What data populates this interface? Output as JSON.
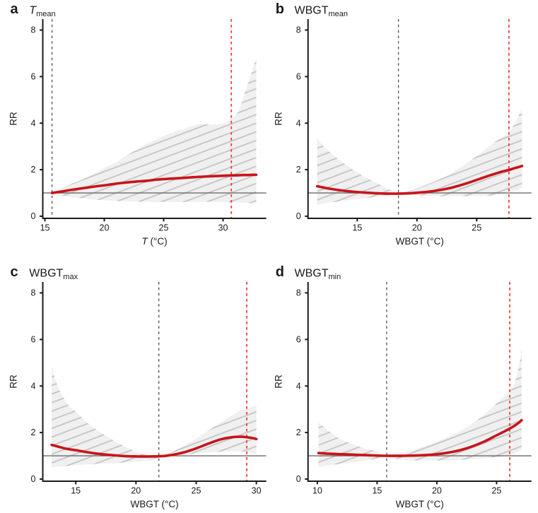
{
  "page": {
    "background": "#ffffff"
  },
  "style": {
    "curve_color": "#c8141a",
    "extreme_dashed_color": "#f23d33",
    "mmt_dashed_color": "#4d4d4d",
    "axis_color": "#1a1a1a",
    "reference_line_color": "#6b6b6b",
    "band_fill": "#f0f0f0",
    "band_hatch_color": "#c3c3c3",
    "text_color": "#1a1a1a"
  },
  "chart_data": [
    {
      "type": "line",
      "panel_label": "a",
      "title": {
        "main": "T",
        "main_italic": true,
        "sub": "mean"
      },
      "xlabel": {
        "main": "T",
        "main_italic": true,
        "rest": " (°C)"
      },
      "ylabel": "RR",
      "x_ticks": [
        15,
        20,
        25,
        30
      ],
      "y_ticks": [
        0,
        2,
        4,
        6,
        8
      ],
      "x_axis_range": [
        14.82,
        33.64
      ],
      "y_axis_range": [
        -0.091,
        8.471
      ],
      "reference_rr": 1,
      "mmt_line_x": 15.6,
      "extreme_line_x": 30.7,
      "legend": {
        "grid": "off"
      },
      "series": {
        "x": [
          15.6,
          16.4,
          17.2,
          18.0,
          18.7,
          19.4,
          20.2,
          21.0,
          21.9,
          22.7,
          23.5,
          24.6,
          25.5,
          26.5,
          27.6,
          28.3,
          29.1,
          30.1,
          30.6,
          31.3,
          31.7,
          32.1,
          32.45,
          32.8
        ],
        "rr": [
          1.0,
          1.06,
          1.13,
          1.19,
          1.24,
          1.29,
          1.34,
          1.4,
          1.45,
          1.49,
          1.52,
          1.58,
          1.61,
          1.64,
          1.68,
          1.7,
          1.72,
          1.74,
          1.75,
          1.76,
          1.77,
          1.77,
          1.78,
          1.78
        ],
        "hi": [
          1.02,
          1.18,
          1.38,
          1.54,
          1.72,
          1.91,
          2.12,
          2.32,
          2.62,
          2.85,
          3.1,
          3.36,
          3.55,
          3.72,
          3.91,
          3.97,
          3.94,
          4.0,
          4.16,
          4.5,
          5.1,
          5.7,
          6.25,
          6.8
        ],
        "lo": [
          1.0,
          0.89,
          0.82,
          0.78,
          0.74,
          0.71,
          0.68,
          0.66,
          0.64,
          0.63,
          0.62,
          0.615,
          0.61,
          0.61,
          0.615,
          0.62,
          0.62,
          0.61,
          0.6,
          0.59,
          0.58,
          0.57,
          0.56,
          0.55
        ]
      }
    },
    {
      "type": "line",
      "panel_label": "b",
      "title": {
        "main": "WBGT",
        "main_italic": false,
        "sub": "mean"
      },
      "xlabel": {
        "main": "WBGT",
        "main_italic": false,
        "rest": " (°C)"
      },
      "ylabel": "RR",
      "x_ticks": [
        15,
        20,
        25
      ],
      "y_ticks": [
        0,
        2,
        4,
        6,
        8
      ],
      "x_axis_range": [
        10.88,
        29.59
      ],
      "y_axis_range": [
        -0.091,
        8.471
      ],
      "reference_rr": 1,
      "mmt_line_x": 18.45,
      "extreme_line_x": 27.7,
      "legend": {
        "grid": "off"
      },
      "series": {
        "x": [
          11.65,
          12.5,
          13.5,
          14.5,
          15.5,
          16.5,
          17.5,
          18.45,
          19.5,
          20.5,
          21.5,
          22.5,
          23.5,
          24.5,
          25.5,
          26.5,
          27.2,
          27.7,
          28.2,
          28.5,
          28.8
        ],
        "rr": [
          1.29,
          1.2,
          1.12,
          1.06,
          1.02,
          0.99,
          0.97,
          0.97,
          0.99,
          1.03,
          1.09,
          1.18,
          1.31,
          1.47,
          1.65,
          1.82,
          1.93,
          1.99,
          2.07,
          2.11,
          2.16
        ],
        "hi": [
          3.31,
          2.85,
          2.42,
          2.05,
          1.73,
          1.46,
          1.2,
          0.99,
          1.1,
          1.3,
          1.5,
          1.74,
          2.05,
          2.4,
          2.78,
          3.18,
          3.42,
          3.6,
          4.0,
          4.3,
          4.68
        ],
        "lo": [
          0.5,
          0.57,
          0.64,
          0.71,
          0.77,
          0.83,
          0.88,
          0.96,
          0.93,
          0.89,
          0.87,
          0.86,
          0.86,
          0.86,
          0.87,
          0.9,
          0.95,
          1.02,
          1.1,
          1.16,
          1.23
        ]
      }
    },
    {
      "type": "line",
      "panel_label": "c",
      "title": {
        "main": "WBGT",
        "main_italic": false,
        "sub": "max"
      },
      "xlabel": {
        "main": "WBGT",
        "main_italic": false,
        "rest": " (°C)"
      },
      "ylabel": "RR",
      "x_ticks": [
        15,
        20,
        25,
        30
      ],
      "y_ticks": [
        0,
        2,
        4,
        6,
        8
      ],
      "x_axis_range": [
        12.26,
        30.82
      ],
      "y_axis_range": [
        -0.091,
        8.471
      ],
      "reference_rr": 1,
      "mmt_line_x": 21.9,
      "extreme_line_x": 29.2,
      "legend": {
        "grid": "off"
      },
      "series": {
        "x": [
          13.0,
          13.5,
          14.0,
          14.5,
          15.0,
          16.0,
          17.0,
          18.0,
          19.0,
          20.0,
          21.0,
          21.9,
          22.5,
          23.0,
          24.0,
          25.0,
          26.0,
          27.0,
          28.0,
          28.7,
          29.2,
          29.7,
          30.0
        ],
        "rr": [
          1.47,
          1.4,
          1.33,
          1.28,
          1.24,
          1.15,
          1.08,
          1.03,
          0.99,
          0.975,
          0.97,
          0.98,
          1.0,
          1.04,
          1.15,
          1.32,
          1.52,
          1.7,
          1.8,
          1.82,
          1.8,
          1.76,
          1.72
        ],
        "hi": [
          4.8,
          4.0,
          3.48,
          3.1,
          2.9,
          2.4,
          2.03,
          1.7,
          1.42,
          1.18,
          1.03,
          0.99,
          1.06,
          1.16,
          1.44,
          1.74,
          2.08,
          2.42,
          2.74,
          2.95,
          3.02,
          3.12,
          3.15
        ],
        "lo": [
          0.51,
          0.53,
          0.55,
          0.58,
          0.6,
          0.63,
          0.66,
          0.68,
          0.71,
          0.74,
          0.8,
          0.93,
          1.0,
          1.02,
          1.06,
          1.1,
          1.14,
          1.18,
          1.2,
          1.19,
          1.16,
          1.11,
          1.07
        ]
      }
    },
    {
      "type": "line",
      "panel_label": "d",
      "title": {
        "main": "WBGT",
        "main_italic": false,
        "sub": "min"
      },
      "xlabel": {
        "main": "WBGT",
        "main_italic": false,
        "rest": " (°C)"
      },
      "ylabel": "RR",
      "x_ticks": [
        10,
        15,
        20,
        25
      ],
      "y_ticks": [
        0,
        2,
        4,
        6,
        8
      ],
      "x_axis_range": [
        9.22,
        27.92
      ],
      "y_axis_range": [
        -0.091,
        8.471
      ],
      "reference_rr": 1,
      "mmt_line_x": 15.8,
      "extreme_line_x": 26.1,
      "legend": {
        "grid": "off"
      },
      "series": {
        "x": [
          10.1,
          11.0,
          12.0,
          13.0,
          14.0,
          15.0,
          15.8,
          16.5,
          17.0,
          18.0,
          19.0,
          20.0,
          21.0,
          22.0,
          23.0,
          24.0,
          25.0,
          25.7,
          26.4,
          26.8,
          27.1
        ],
        "rr": [
          1.12,
          1.09,
          1.07,
          1.05,
          1.03,
          1.01,
          1.0,
          1.0,
          1.0,
          1.01,
          1.03,
          1.07,
          1.14,
          1.25,
          1.41,
          1.62,
          1.88,
          2.06,
          2.26,
          2.4,
          2.53
        ],
        "hi": [
          2.43,
          2.05,
          1.7,
          1.49,
          1.32,
          1.18,
          1.01,
          1.08,
          1.13,
          1.26,
          1.41,
          1.6,
          1.83,
          2.08,
          2.4,
          2.78,
          3.25,
          3.6,
          4.0,
          4.7,
          5.58
        ],
        "lo": [
          0.52,
          0.59,
          0.66,
          0.73,
          0.8,
          0.88,
          0.97,
          0.88,
          0.84,
          0.81,
          0.8,
          0.8,
          0.81,
          0.83,
          0.86,
          0.9,
          0.95,
          1.0,
          1.08,
          1.16,
          1.26
        ]
      }
    }
  ]
}
